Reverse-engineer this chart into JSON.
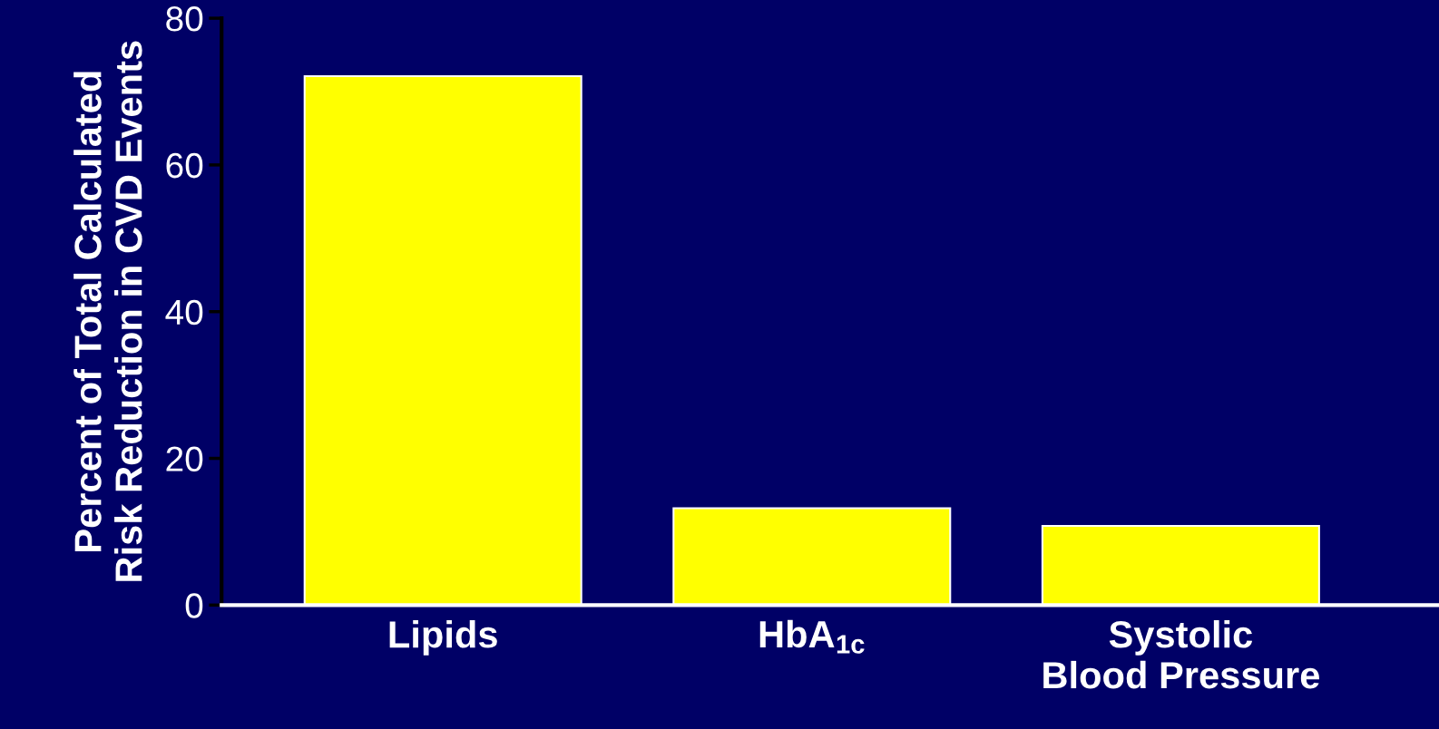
{
  "chart_data": {
    "type": "bar",
    "ylabel": "Percent of Total Calculated\nRisk Reduction in CVD Events",
    "categories": [
      "Lipids",
      "HbA$_{1c}$",
      "Systolic\nBlood Pressure"
    ],
    "values": [
      72.1,
      13.2,
      10.8
    ],
    "color": "#ffff00",
    "ylim": [
      0,
      80
    ],
    "yticks": [
      0,
      20,
      40,
      60,
      80
    ],
    "grid": false
  }
}
